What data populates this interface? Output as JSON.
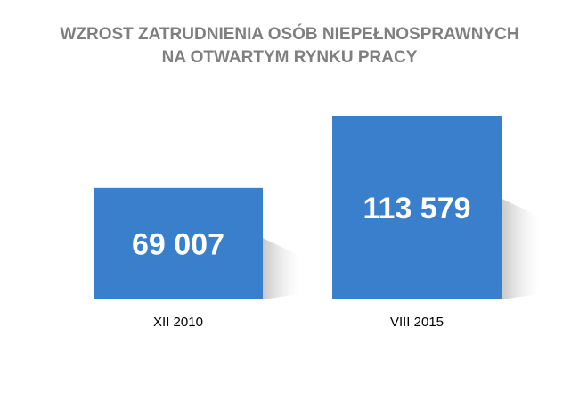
{
  "chart_data": {
    "type": "bar",
    "title": [
      "WZROST ZATRUDNIENIA OSÓB NIEPEŁNOSPRAWNYCH",
      "NA OTWARTYM RYNKU PRACY"
    ],
    "categories": [
      "XII 2010",
      "VIII 2015"
    ],
    "values": [
      69007,
      113579
    ],
    "value_labels": [
      "69 007",
      "113 579"
    ],
    "xlabel": "",
    "ylabel": "",
    "grid": false,
    "legend": "none",
    "colors": {
      "bar": "#3a7fcb",
      "shadow": "#bfbfbf",
      "title": "#7f7f7f"
    }
  }
}
